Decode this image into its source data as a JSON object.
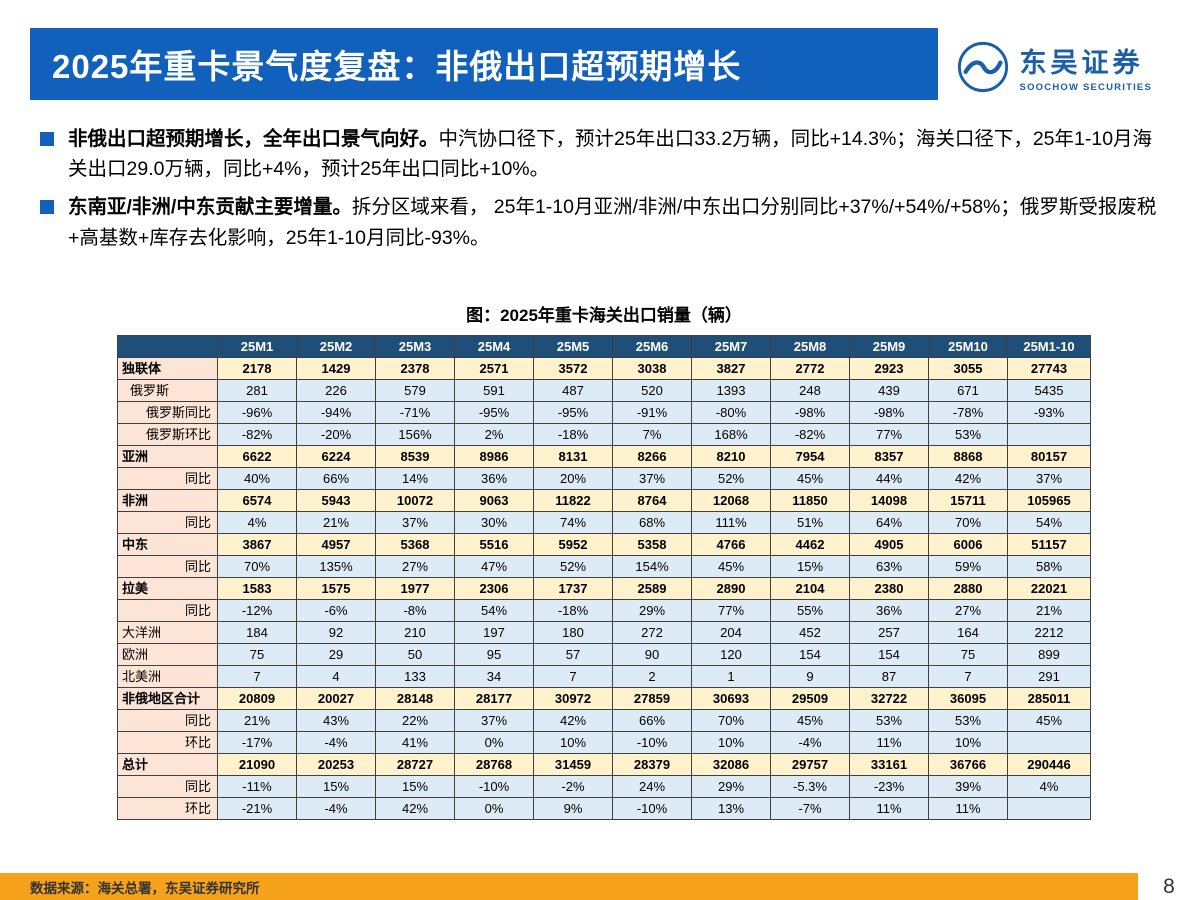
{
  "header": {
    "title": "2025年重卡景气度复盘：非俄出口超预期增长"
  },
  "logo": {
    "name_cn": "东吴证券",
    "name_en": "SOOCHOW SECURITIES"
  },
  "bullets": [
    {
      "bold": "非俄出口超预期增长，全年出口景气向好。",
      "text": "中汽协口径下，预计25年出口33.2万辆，同比+14.3%；海关口径下，25年1-10月海关出口29.0万辆，同比+4%，预计25年出口同比+10%。"
    },
    {
      "bold": "东南亚/非洲/中东贡献主要增量。",
      "text": "拆分区域来看， 25年1-10月亚洲/非洲/中东出口分别同比+37%/+54%/+58%；俄罗斯受报废税+高基数+库存去化影响，25年1-10月同比-93%。"
    }
  ],
  "main": {
    "table_title": "图：2025年重卡海关出口销量（辆）"
  },
  "chart_data": {
    "type": "table",
    "columns": [
      "",
      "25M1",
      "25M2",
      "25M3",
      "25M4",
      "25M5",
      "25M6",
      "25M7",
      "25M8",
      "25M9",
      "25M10",
      "25M1-10"
    ],
    "rows": [
      {
        "label": "独联体",
        "style": "main",
        "align": "left",
        "values": [
          "2178",
          "1429",
          "2378",
          "2571",
          "3572",
          "3038",
          "3827",
          "2772",
          "2923",
          "3055",
          "27743"
        ]
      },
      {
        "label": "俄罗斯",
        "style": "sub",
        "align": "indent",
        "values": [
          "281",
          "226",
          "579",
          "591",
          "487",
          "520",
          "1393",
          "248",
          "439",
          "671",
          "5435"
        ]
      },
      {
        "label": "俄罗斯同比",
        "style": "sub",
        "align": "right",
        "values": [
          "-96%",
          "-94%",
          "-71%",
          "-95%",
          "-95%",
          "-91%",
          "-80%",
          "-98%",
          "-98%",
          "-78%",
          "-93%"
        ]
      },
      {
        "label": "俄罗斯环比",
        "style": "sub",
        "align": "right",
        "values": [
          "-82%",
          "-20%",
          "156%",
          "2%",
          "-18%",
          "7%",
          "168%",
          "-82%",
          "77%",
          "53%",
          ""
        ]
      },
      {
        "label": "亚洲",
        "style": "main",
        "align": "left",
        "values": [
          "6622",
          "6224",
          "8539",
          "8986",
          "8131",
          "8266",
          "8210",
          "7954",
          "8357",
          "8868",
          "80157"
        ]
      },
      {
        "label": "同比",
        "style": "sub",
        "align": "right",
        "values": [
          "40%",
          "66%",
          "14%",
          "36%",
          "20%",
          "37%",
          "52%",
          "45%",
          "44%",
          "42%",
          "37%"
        ]
      },
      {
        "label": "非洲",
        "style": "main",
        "align": "left",
        "values": [
          "6574",
          "5943",
          "10072",
          "9063",
          "11822",
          "8764",
          "12068",
          "11850",
          "14098",
          "15711",
          "105965"
        ]
      },
      {
        "label": "同比",
        "style": "sub",
        "align": "right",
        "values": [
          "4%",
          "21%",
          "37%",
          "30%",
          "74%",
          "68%",
          "111%",
          "51%",
          "64%",
          "70%",
          "54%"
        ]
      },
      {
        "label": "中东",
        "style": "main",
        "align": "left",
        "values": [
          "3867",
          "4957",
          "5368",
          "5516",
          "5952",
          "5358",
          "4766",
          "4462",
          "4905",
          "6006",
          "51157"
        ]
      },
      {
        "label": "同比",
        "style": "sub",
        "align": "right",
        "values": [
          "70%",
          "135%",
          "27%",
          "47%",
          "52%",
          "154%",
          "45%",
          "15%",
          "63%",
          "59%",
          "58%"
        ]
      },
      {
        "label": "拉美",
        "style": "main",
        "align": "left",
        "values": [
          "1583",
          "1575",
          "1977",
          "2306",
          "1737",
          "2589",
          "2890",
          "2104",
          "2380",
          "2880",
          "22021"
        ]
      },
      {
        "label": "同比",
        "style": "sub",
        "align": "right",
        "values": [
          "-12%",
          "-6%",
          "-8%",
          "54%",
          "-18%",
          "29%",
          "77%",
          "55%",
          "36%",
          "27%",
          "21%"
        ]
      },
      {
        "label": "大洋洲",
        "style": "sub",
        "align": "left",
        "values": [
          "184",
          "92",
          "210",
          "197",
          "180",
          "272",
          "204",
          "452",
          "257",
          "164",
          "2212"
        ]
      },
      {
        "label": "欧洲",
        "style": "sub",
        "align": "left",
        "values": [
          "75",
          "29",
          "50",
          "95",
          "57",
          "90",
          "120",
          "154",
          "154",
          "75",
          "899"
        ]
      },
      {
        "label": "北美洲",
        "style": "sub",
        "align": "left",
        "values": [
          "7",
          "4",
          "133",
          "34",
          "7",
          "2",
          "1",
          "9",
          "87",
          "7",
          "291"
        ]
      },
      {
        "label": "非俄地区合计",
        "style": "main",
        "align": "left",
        "values": [
          "20809",
          "20027",
          "28148",
          "28177",
          "30972",
          "27859",
          "30693",
          "29509",
          "32722",
          "36095",
          "285011"
        ]
      },
      {
        "label": "同比",
        "style": "sub",
        "align": "right",
        "values": [
          "21%",
          "43%",
          "22%",
          "37%",
          "42%",
          "66%",
          "70%",
          "45%",
          "53%",
          "53%",
          "45%"
        ]
      },
      {
        "label": "环比",
        "style": "sub",
        "align": "right",
        "values": [
          "-17%",
          "-4%",
          "41%",
          "0%",
          "10%",
          "-10%",
          "10%",
          "-4%",
          "11%",
          "10%",
          ""
        ]
      },
      {
        "label": "总计",
        "style": "main",
        "align": "left",
        "values": [
          "21090",
          "20253",
          "28727",
          "28768",
          "31459",
          "28379",
          "32086",
          "29757",
          "33161",
          "36766",
          "290446"
        ]
      },
      {
        "label": "同比",
        "style": "sub",
        "align": "right",
        "values": [
          "-11%",
          "15%",
          "15%",
          "-10%",
          "-2%",
          "24%",
          "29%",
          "-5.3%",
          "-23%",
          "39%",
          "4%"
        ]
      },
      {
        "label": "环比",
        "style": "sub",
        "align": "right",
        "values": [
          "-21%",
          "-4%",
          "42%",
          "0%",
          "9%",
          "-10%",
          "13%",
          "-7%",
          "11%",
          "11%",
          ""
        ]
      }
    ]
  },
  "footer": {
    "source": "数据来源：海关总署，东吴证券研究所",
    "page": "8"
  },
  "colors": {
    "header_bar": "#1060bc",
    "accent": "#1060bc",
    "logo_blue": "#1b5fa8",
    "table_header_bg": "#1f4e79",
    "row_main_bg": "#fff2cc",
    "row_sub_bg": "#ddebf7",
    "label_col_bg": "#fce4d6",
    "footer_bar": "#f7a21b",
    "border": "#404040"
  }
}
